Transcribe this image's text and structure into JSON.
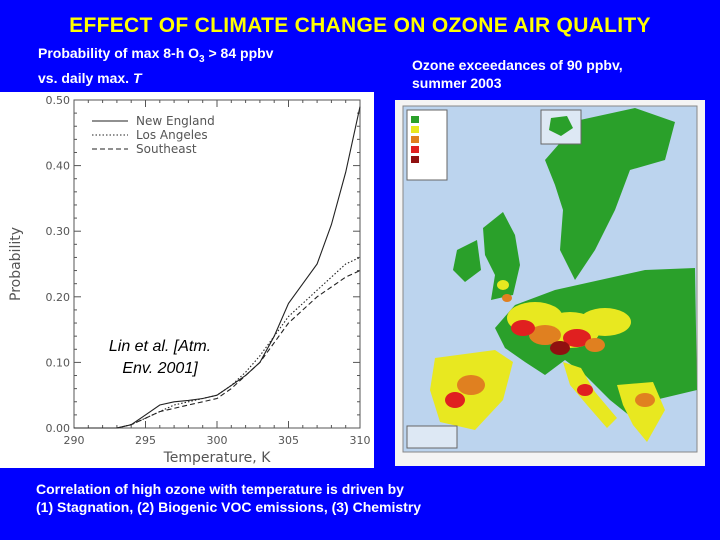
{
  "title": "EFFECT OF CLIMATE CHANGE ON OZONE AIR QUALITY",
  "left_caption": {
    "line1_pre": "Probability of max 8-h O",
    "line1_sub": "3",
    "line1_post": " > 84 ppbv",
    "line2_pre": "vs. daily max. ",
    "line2_italic": "T"
  },
  "right_caption": {
    "line1": "Ozone exceedances of 90 ppbv,",
    "line2": "summer 2003"
  },
  "citation": {
    "line1": "Lin et al. [Atm.",
    "line2": "Env.  2001]"
  },
  "bottom_caption": {
    "line1": "Correlation of high ozone with temperature is driven by",
    "line2": "(1)   Stagnation, (2) Biogenic VOC emissions, (3) Chemistry"
  },
  "chart_data": {
    "type": "line",
    "xlabel": "Temperature, K",
    "ylabel": "Probability",
    "xlim": [
      290,
      310
    ],
    "ylim": [
      0,
      0.5
    ],
    "x_ticks": [
      290,
      295,
      300,
      305,
      310
    ],
    "x_tick_labels": [
      "290",
      "295",
      "300",
      "305",
      "310"
    ],
    "y_ticks": [
      0,
      0.1,
      0.2,
      0.3,
      0.4,
      0.5
    ],
    "y_tick_labels": [
      "0.00",
      "0.10",
      "0.20",
      "0.30",
      "0.40",
      "0.50"
    ],
    "legend_position": "top-left",
    "series": [
      {
        "name": "New England",
        "style": "solid",
        "x": [
          290,
          293,
          294,
          295,
          296,
          297,
          298,
          299,
          300,
          301,
          302,
          303,
          304,
          305,
          306,
          307,
          308,
          309,
          310
        ],
        "y": [
          0.0,
          0.0,
          0.005,
          0.02,
          0.035,
          0.04,
          0.042,
          0.045,
          0.05,
          0.065,
          0.08,
          0.1,
          0.14,
          0.19,
          0.22,
          0.25,
          0.31,
          0.39,
          0.49
        ]
      },
      {
        "name": "Los Angeles",
        "style": "dotted",
        "x": [
          290,
          293,
          294,
          295,
          296,
          297,
          298,
          299,
          300,
          301,
          302,
          303,
          304,
          305,
          306,
          307,
          308,
          309,
          310
        ],
        "y": [
          0.0,
          0.0,
          0.005,
          0.015,
          0.025,
          0.035,
          0.04,
          0.045,
          0.05,
          0.065,
          0.085,
          0.11,
          0.14,
          0.17,
          0.19,
          0.21,
          0.23,
          0.25,
          0.26
        ]
      },
      {
        "name": "Southeast",
        "style": "dashed",
        "x": [
          290,
          293,
          294,
          295,
          296,
          297,
          298,
          299,
          300,
          301,
          302,
          303,
          304,
          305,
          306,
          307,
          308,
          309,
          310
        ],
        "y": [
          0.0,
          0.0,
          0.005,
          0.015,
          0.025,
          0.03,
          0.035,
          0.04,
          0.045,
          0.06,
          0.08,
          0.1,
          0.13,
          0.16,
          0.18,
          0.2,
          0.215,
          0.23,
          0.24
        ]
      }
    ]
  },
  "map": {
    "land_color": "#2aa02a",
    "sea_color": "#bcd4ee",
    "exceed_colors": [
      "#2aa02a",
      "#e8e820",
      "#e08020",
      "#e02020",
      "#901010"
    ]
  }
}
